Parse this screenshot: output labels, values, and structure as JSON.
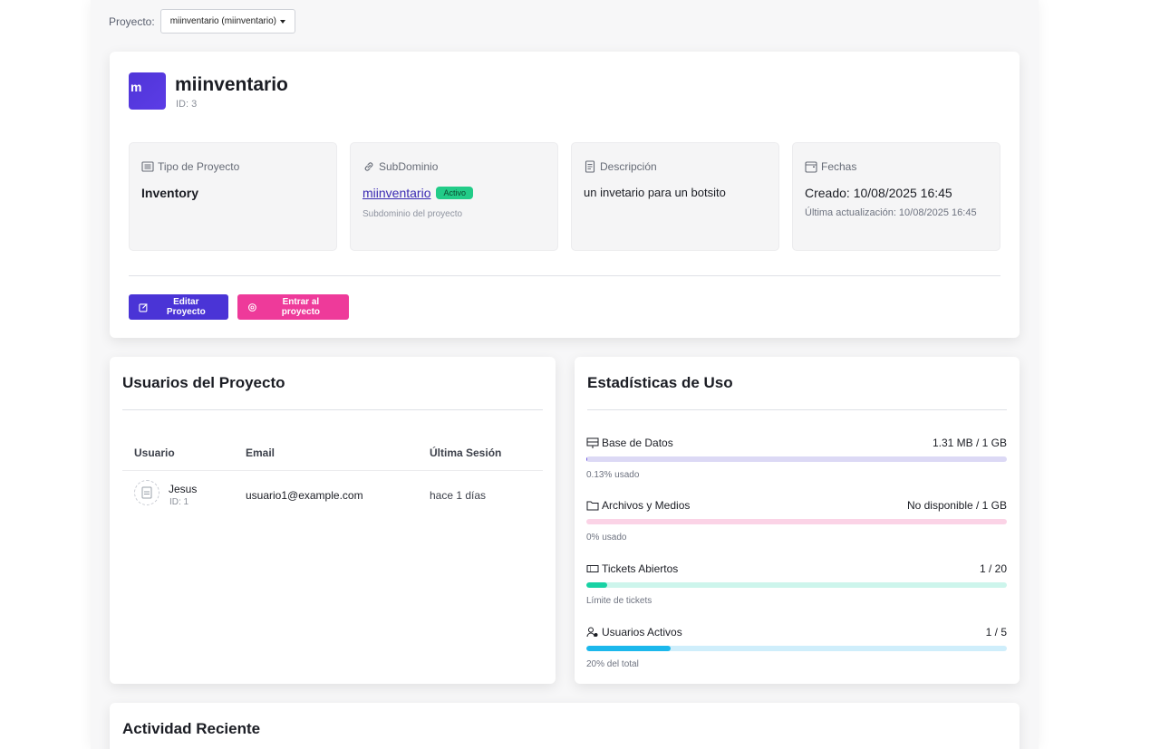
{
  "selector": {
    "label": "Proyecto:",
    "value": "miinventario (miinventario)"
  },
  "project": {
    "initial": "m",
    "name": "miinventario",
    "id": "ID: 3",
    "cards": {
      "type": {
        "title": "Tipo de Proyecto",
        "value": "Inventory"
      },
      "subdomain": {
        "title": "SubDominio",
        "value": "miinventario",
        "badge": "Activo",
        "hint": "Subdominio del proyecto"
      },
      "description": {
        "title": "Descripción",
        "value": "un invetario para un botsito"
      },
      "dates": {
        "title": "Fechas",
        "created": "Creado: 10/08/2025 16:45",
        "updated": "Última actualización: 10/08/2025 16:45"
      }
    },
    "buttons": {
      "edit": "Editar Proyecto",
      "enter": "Entrar al proyecto"
    }
  },
  "users": {
    "title": "Usuarios del Proyecto",
    "columns": [
      "Usuario",
      "Email",
      "Última Sesión"
    ],
    "rows": [
      {
        "name": "Jesus",
        "id": "ID: 1",
        "email": "usuario1@example.com",
        "last": "hace 1 días"
      }
    ]
  },
  "stats": {
    "title": "Estadísticas de Uso",
    "items": [
      {
        "label": "Base de Datos",
        "value": "1.31 MB / 1 GB",
        "note": "0.13% usado",
        "fraction": 0.0013,
        "icon": "database-icon",
        "track": "#dcd9f5",
        "fill": "#6c54e0"
      },
      {
        "label": "Archivos y Medios",
        "value": "No disponible / 1 GB",
        "note": "0% usado",
        "fraction": 0,
        "icon": "folder-icon",
        "track": "#fbd3e6",
        "fill": "#ee3a9a"
      },
      {
        "label": "Tickets Abiertos",
        "value": "1 / 20",
        "note": "Límite de tickets",
        "fraction": 0.05,
        "icon": "ticket-icon",
        "track": "#cdf5ec",
        "fill": "#18d2a4"
      },
      {
        "label": "Usuarios Activos",
        "value": "1 / 5",
        "note": "20% del total",
        "fraction": 0.2,
        "icon": "users-icon",
        "track": "#cfeefb",
        "fill": "#1cb8ec"
      }
    ]
  },
  "activity": {
    "title": "Actividad Reciente"
  },
  "colors": {
    "primary": "#4a34d6",
    "pink": "#ee3a9a",
    "success": "#22cc88"
  }
}
